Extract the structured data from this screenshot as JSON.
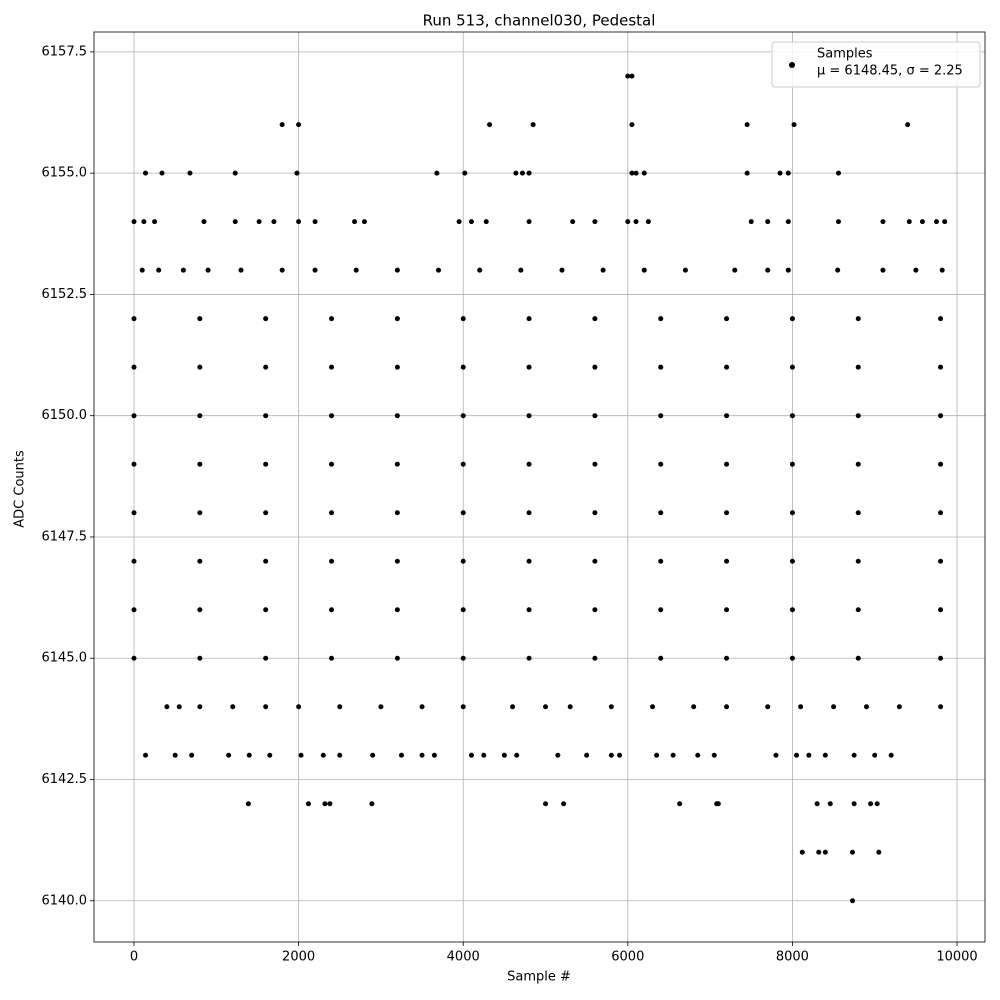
{
  "chart_data": {
    "type": "scatter",
    "title": "Run 513, channel030, Pedestal",
    "xlabel": "Sample #",
    "ylabel": "ADC Counts",
    "legend_note": "μ = 6148.45, σ = 2.25",
    "legend_loc": "upper right",
    "grid": true,
    "xlim": [
      -486,
      10340
    ],
    "ylim": [
      6139.15,
      6157.91
    ],
    "xticks": [
      0,
      2000,
      4000,
      6000,
      8000,
      10000
    ],
    "yticks": [
      {
        "value": 6140,
        "label": "6140.0"
      },
      6142.5,
      {
        "value": 6145,
        "label": "6145.0"
      },
      6147.5,
      {
        "value": 6150,
        "label": "6150.0"
      },
      6152.5,
      {
        "value": 6155,
        "label": "6155.0"
      },
      6157.5
    ],
    "series": [
      {
        "name": "Samples",
        "color": "#000000",
        "x": [
          6000,
          6050,
          1800,
          2000,
          4320,
          4850,
          6050,
          7450,
          8020,
          9400,
          140,
          340,
          680,
          1230,
          1980,
          3680,
          4020,
          4640,
          4720,
          4800,
          6050,
          6100,
          6200,
          7450,
          7850,
          7950,
          8560,
          0,
          120,
          250,
          850,
          1230,
          1520,
          1700,
          2000,
          2200,
          2680,
          2800,
          3950,
          4100,
          4280,
          4800,
          5330,
          5600,
          6000,
          6100,
          6250,
          7500,
          7700,
          7950,
          8560,
          9100,
          9420,
          9580,
          9750,
          9850,
          100,
          300,
          600,
          900,
          1300,
          1800,
          2200,
          2700,
          3200,
          3700,
          4200,
          4700,
          5200,
          5700,
          6200,
          6700,
          7300,
          7700,
          7950,
          8550,
          9100,
          9500,
          9820,
          0,
          800,
          1600,
          2400,
          3200,
          4000,
          4800,
          5600,
          6400,
          7200,
          8000,
          8800,
          9800,
          0,
          800,
          1600,
          2400,
          3200,
          4000,
          4800,
          5600,
          6400,
          7200,
          8000,
          8800,
          9800,
          0,
          800,
          1600,
          2400,
          3200,
          4000,
          4800,
          5600,
          6400,
          7200,
          8000,
          8800,
          9800,
          0,
          800,
          1600,
          2400,
          3200,
          4000,
          4800,
          5600,
          6400,
          7200,
          8000,
          8800,
          9800,
          0,
          800,
          1600,
          2400,
          3200,
          4000,
          4800,
          5600,
          6400,
          7200,
          8000,
          8800,
          9800,
          0,
          800,
          1600,
          2400,
          3200,
          4000,
          4800,
          5600,
          6400,
          7200,
          8000,
          8800,
          9800,
          0,
          800,
          1600,
          2400,
          3200,
          4000,
          4800,
          5600,
          6400,
          7200,
          8000,
          8800,
          9800,
          0,
          800,
          1600,
          2400,
          3200,
          4000,
          4800,
          5600,
          6400,
          7200,
          8000,
          8800,
          9800,
          400,
          550,
          800,
          1200,
          1600,
          2000,
          2500,
          3000,
          3500,
          4000,
          4600,
          5000,
          5300,
          5800,
          6300,
          6800,
          7200,
          7700,
          8100,
          8500,
          8900,
          9300,
          9800,
          140,
          500,
          700,
          1150,
          1400,
          1650,
          2030,
          2300,
          2500,
          2900,
          3250,
          3500,
          3650,
          4100,
          4250,
          4500,
          4650,
          5150,
          5500,
          5800,
          5900,
          6350,
          6550,
          6850,
          7050,
          7800,
          8050,
          8200,
          8400,
          8750,
          9000,
          9200,
          1390,
          2120,
          2320,
          2380,
          2890,
          5000,
          5220,
          6630,
          7080,
          7100,
          8300,
          8460,
          8750,
          8950,
          9030,
          8120,
          8320,
          8400,
          8730,
          9050,
          8730
        ],
        "values": [
          6157,
          6157,
          6156,
          6156,
          6156,
          6156,
          6156,
          6156,
          6156,
          6156,
          6155,
          6155,
          6155,
          6155,
          6155,
          6155,
          6155,
          6155,
          6155,
          6155,
          6155,
          6155,
          6155,
          6155,
          6155,
          6155,
          6155,
          6154,
          6154,
          6154,
          6154,
          6154,
          6154,
          6154,
          6154,
          6154,
          6154,
          6154,
          6154,
          6154,
          6154,
          6154,
          6154,
          6154,
          6154,
          6154,
          6154,
          6154,
          6154,
          6154,
          6154,
          6154,
          6154,
          6154,
          6154,
          6154,
          6153,
          6153,
          6153,
          6153,
          6153,
          6153,
          6153,
          6153,
          6153,
          6153,
          6153,
          6153,
          6153,
          6153,
          6153,
          6153,
          6153,
          6153,
          6153,
          6153,
          6153,
          6153,
          6153,
          6152,
          6152,
          6152,
          6152,
          6152,
          6152,
          6152,
          6152,
          6152,
          6152,
          6152,
          6152,
          6152,
          6151,
          6151,
          6151,
          6151,
          6151,
          6151,
          6151,
          6151,
          6151,
          6151,
          6151,
          6151,
          6151,
          6150,
          6150,
          6150,
          6150,
          6150,
          6150,
          6150,
          6150,
          6150,
          6150,
          6150,
          6150,
          6150,
          6149,
          6149,
          6149,
          6149,
          6149,
          6149,
          6149,
          6149,
          6149,
          6149,
          6149,
          6149,
          6149,
          6148,
          6148,
          6148,
          6148,
          6148,
          6148,
          6148,
          6148,
          6148,
          6148,
          6148,
          6148,
          6148,
          6147,
          6147,
          6147,
          6147,
          6147,
          6147,
          6147,
          6147,
          6147,
          6147,
          6147,
          6147,
          6147,
          6146,
          6146,
          6146,
          6146,
          6146,
          6146,
          6146,
          6146,
          6146,
          6146,
          6146,
          6146,
          6146,
          6145,
          6145,
          6145,
          6145,
          6145,
          6145,
          6145,
          6145,
          6145,
          6145,
          6145,
          6145,
          6145,
          6144,
          6144,
          6144,
          6144,
          6144,
          6144,
          6144,
          6144,
          6144,
          6144,
          6144,
          6144,
          6144,
          6144,
          6144,
          6144,
          6144,
          6144,
          6144,
          6144,
          6144,
          6144,
          6144,
          6143,
          6143,
          6143,
          6143,
          6143,
          6143,
          6143,
          6143,
          6143,
          6143,
          6143,
          6143,
          6143,
          6143,
          6143,
          6143,
          6143,
          6143,
          6143,
          6143,
          6143,
          6143,
          6143,
          6143,
          6143,
          6143,
          6143,
          6143,
          6143,
          6143,
          6143,
          6143,
          6142,
          6142,
          6142,
          6142,
          6142,
          6142,
          6142,
          6142,
          6142,
          6142,
          6142,
          6142,
          6142,
          6142,
          6142,
          6141,
          6141,
          6141,
          6141,
          6141,
          6140
        ]
      }
    ]
  }
}
